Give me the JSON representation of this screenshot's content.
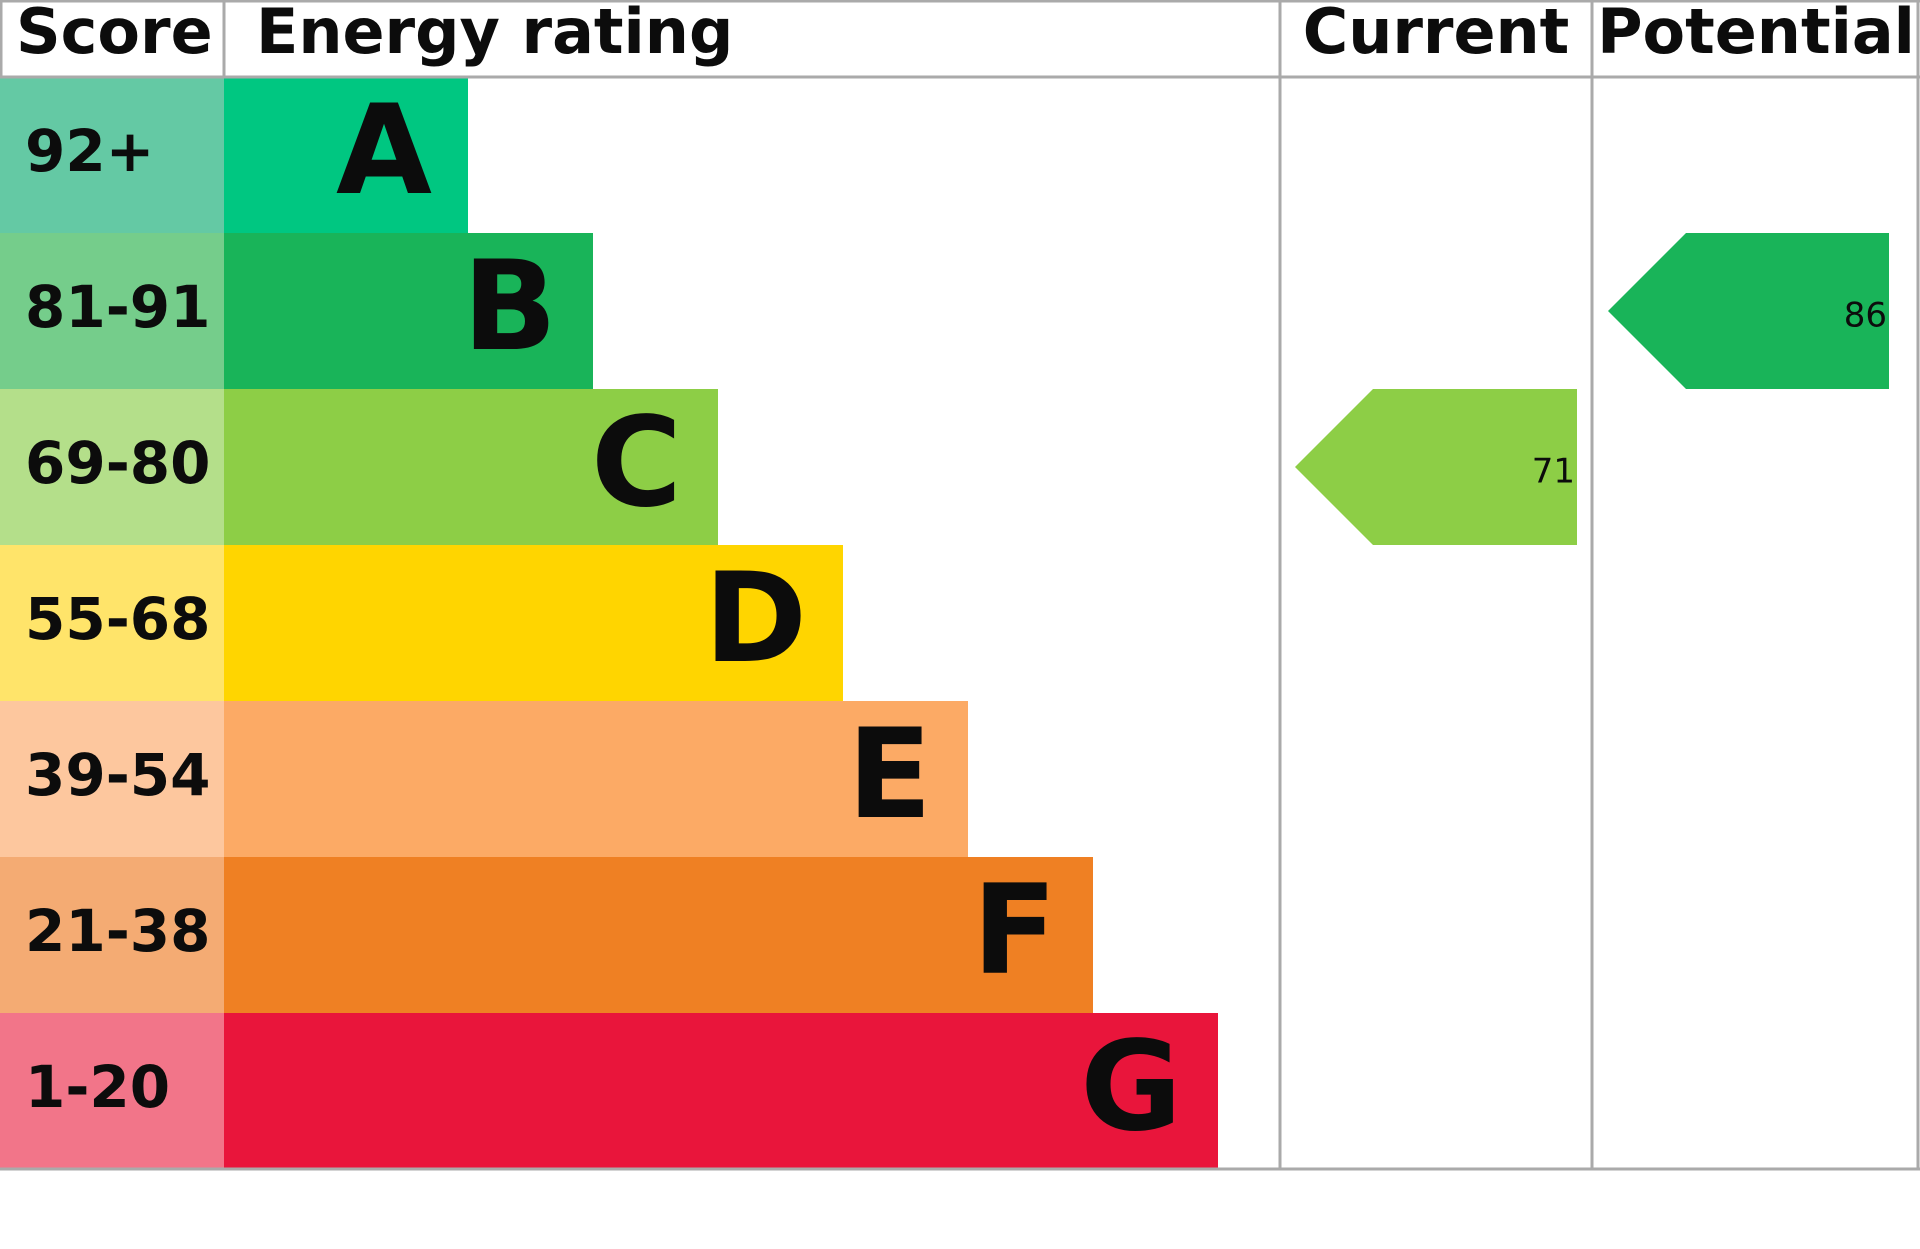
{
  "header": {
    "score": "Score",
    "rating": "Energy rating",
    "current": "Current",
    "potential": "Potential"
  },
  "bands": [
    {
      "score": "92+",
      "letter": "A",
      "color": "#00c781",
      "score_color": "#64c9a4"
    },
    {
      "score": "81-91",
      "letter": "B",
      "color": "#19b459",
      "score_color": "#75cd8b"
    },
    {
      "score": "69-80",
      "letter": "C",
      "color": "#8dce46",
      "score_color": "#b4df8a"
    },
    {
      "score": "55-68",
      "letter": "D",
      "color": "#ffd500",
      "score_color": "#ffe46a"
    },
    {
      "score": "39-54",
      "letter": "E",
      "color": "#fcaa65",
      "score_color": "#fdc79e"
    },
    {
      "score": "21-38",
      "letter": "F",
      "color": "#ef8023",
      "score_color": "#f4ab73"
    },
    {
      "score": "1-20",
      "letter": "G",
      "color": "#e9153b",
      "score_color": "#f27589"
    }
  ],
  "current": 71,
  "potential": 86
}
